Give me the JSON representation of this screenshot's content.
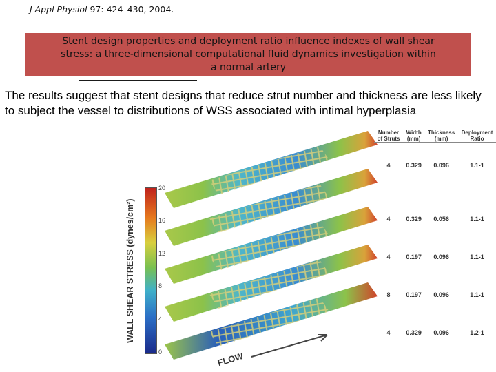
{
  "citation": {
    "journal": "J Appl Physiol",
    "details": " 97: 424–430, 2004."
  },
  "title": {
    "line1": "Stent design properties and deployment ratio influence indexes of wall shear",
    "line2": "stress: a three-dimensional computational fluid dynamics investigation within",
    "line3": "a normal artery"
  },
  "summary": "The results suggest that stent designs that reduce strut number and thickness are less likely to subject the vessel to distributions of WSS associated with intimal hyperplasia",
  "colorbar": {
    "label": "WALL SHEAR STRESS (dynes/cm²)",
    "ticks": [
      "20",
      "16",
      "12",
      "8",
      "4",
      "0"
    ]
  },
  "flow_label": "FLOW",
  "table": {
    "headers": [
      "Number of Struts",
      "Width (mm)",
      "Thickness (mm)",
      "Deployment Ratio"
    ],
    "rows": [
      [
        "4",
        "0.329",
        "0.096",
        "1.1-1"
      ],
      [
        "4",
        "0.329",
        "0.056",
        "1.1-1"
      ],
      [
        "4",
        "0.197",
        "0.096",
        "1.1-1"
      ],
      [
        "8",
        "0.197",
        "0.096",
        "1.1-1"
      ],
      [
        "4",
        "0.329",
        "0.096",
        "1.2-1"
      ]
    ]
  },
  "colors": {
    "title_box": "#c0504d",
    "vessel_green": "#8cc24a",
    "stent_cyan": "#4fb6c9",
    "stent_blue": "#2a5fb8",
    "outlet_red": "#d0432b"
  }
}
